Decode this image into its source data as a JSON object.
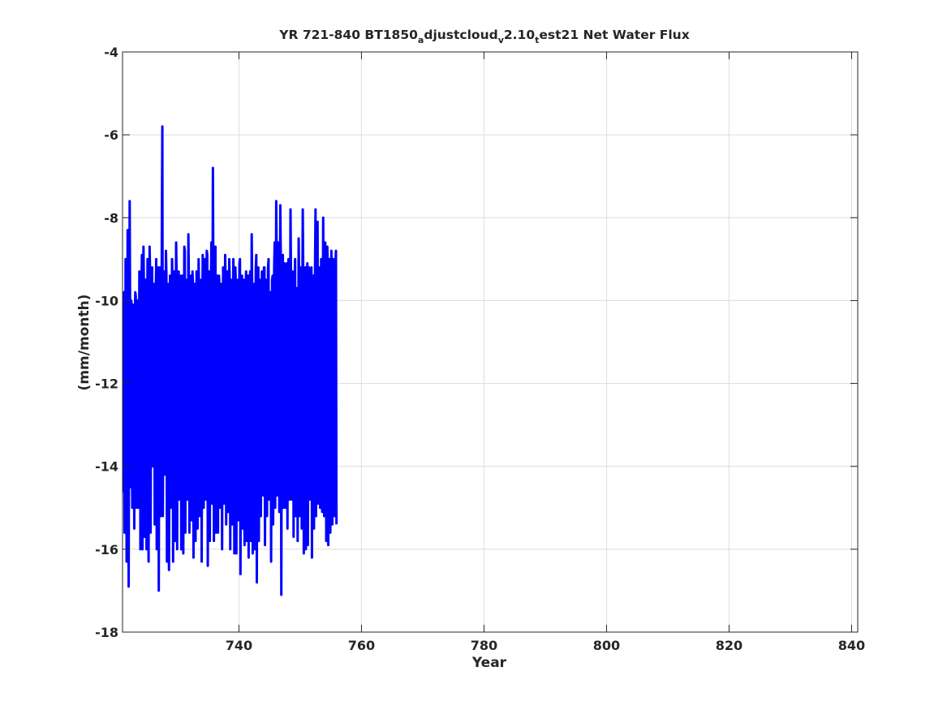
{
  "chart_data": {
    "type": "line",
    "title": {
      "prefix": "YR 721-840 BT1850",
      "sub1": "a",
      "mid1": "djustcloud",
      "sub2": "v",
      "mid2": "2.10",
      "sub3": "t",
      "suffix": "est21 Net Water Flux"
    },
    "xlabel": "Year",
    "ylabel": "(mm/month)",
    "xlim": [
      721,
      841
    ],
    "ylim": [
      -18,
      -4
    ],
    "xticks": [
      740,
      760,
      780,
      800,
      820,
      840
    ],
    "yticks": [
      -4,
      -6,
      -8,
      -10,
      -12,
      -14,
      -16,
      -18
    ],
    "grid": true,
    "line_color": "#0000ff",
    "series": [
      {
        "x_start": 721.0,
        "x_step": 0.0833333,
        "values": [
          -12.6,
          -14.6,
          -9.8,
          -9.8,
          -15.6,
          -14.2,
          -9.0,
          -9.2,
          -16.3,
          -11.8,
          -8.3,
          -8.3,
          -16.9,
          -11.6,
          -7.6,
          -10.8,
          -14.5,
          -10.0,
          -10.1,
          -15.0,
          -11.5,
          -10.4,
          -10.1,
          -15.5,
          -10.5,
          -9.8,
          -9.9,
          -15.0,
          -12.0,
          -10.3,
          -10.0,
          -15.0,
          -12.0,
          -9.3,
          -9.6,
          -16.0,
          -12.0,
          -9.9,
          -8.9,
          -16.0,
          -11.0,
          -8.7,
          -9.8,
          -15.7,
          -12.0,
          -9.5,
          -9.5,
          -16.0,
          -11.0,
          -9.0,
          -9.0,
          -16.3,
          -11.5,
          -8.7,
          -9.3,
          -15.6,
          -12.0,
          -9.4,
          -9.2,
          -14.0,
          -12.0,
          -9.6,
          -9.6,
          -15.4,
          -12.5,
          -9.8,
          -9.0,
          -16.0,
          -12.5,
          -9.5,
          -9.2,
          -17.0,
          -11.0,
          -9.2,
          -9.3,
          -15.2,
          -12.0,
          -8.4,
          -5.8,
          -15.2,
          -12.0,
          -9.4,
          -9.3,
          -14.2,
          -11.5,
          -8.8,
          -9.4,
          -16.3,
          -11.5,
          -9.6,
          -9.6,
          -16.5,
          -11.8,
          -9.4,
          -9.4,
          -15.0,
          -11.5,
          -9.0,
          -9.8,
          -16.3,
          -11.0,
          -9.3,
          -9.4,
          -15.8,
          -10.8,
          -8.6,
          -9.5,
          -16.0,
          -11.0,
          -9.4,
          -9.3,
          -14.8,
          -11.3,
          -9.9,
          -9.4,
          -16.0,
          -12.0,
          -9.8,
          -9.4,
          -16.1,
          -11.5,
          -8.7,
          -8.8,
          -15.6,
          -11.8,
          -9.8,
          -9.5,
          -14.8,
          -11.6,
          -8.4,
          -9.6,
          -15.6,
          -11.5,
          -9.5,
          -9.4,
          -15.3,
          -11.5,
          -9.3,
          -9.6,
          -16.2,
          -12.0,
          -10.2,
          -9.6,
          -15.8,
          -11.6,
          -9.3,
          -9.5,
          -15.5,
          -11.8,
          -9.0,
          -9.9,
          -15.2,
          -12.0,
          -10.1,
          -9.5,
          -16.3,
          -11.8,
          -8.9,
          -9.2,
          -15.0,
          -11.4,
          -9.0,
          -9.8,
          -14.8,
          -10.5,
          -8.8,
          -8.9,
          -16.4,
          -11.8,
          -9.3,
          -9.8,
          -15.8,
          -11.4,
          -9.6,
          -8.6,
          -14.9,
          -11.8,
          -6.8,
          -9.7,
          -15.8,
          -11.8,
          -9.0,
          -8.7,
          -15.6,
          -12.0,
          -9.4,
          -9.5,
          -15.6,
          -11.0,
          -9.4,
          -9.7,
          -15.0,
          -11.6,
          -9.6,
          -9.6,
          -16.0,
          -11.8,
          -9.2,
          -9.7,
          -14.9,
          -12.0,
          -8.9,
          -9.6,
          -15.4,
          -11.5,
          -9.3,
          -9.6,
          -15.1,
          -12.0,
          -9.0,
          -9.5,
          -16.0,
          -11.6,
          -9.6,
          -9.5,
          -15.4,
          -12.0,
          -9.0,
          -9.5,
          -16.1,
          -12.0,
          -9.2,
          -9.7,
          -16.1,
          -11.0,
          -9.7,
          -9.5,
          -15.3,
          -12.0,
          -9.1,
          -9.0,
          -16.6,
          -11.6,
          -9.5,
          -9.4,
          -15.5,
          -11.4,
          -9.8,
          -9.5,
          -15.9,
          -11.3,
          -9.8,
          -9.3,
          -15.8,
          -12.1,
          -9.9,
          -9.4,
          -16.2,
          -11.6,
          -9.6,
          -9.3,
          -15.8,
          -12.0,
          -8.4,
          -9.8,
          -16.1,
          -12.5,
          -9.6,
          -9.6,
          -16.0,
          -11.8,
          -9.2,
          -8.9,
          -16.8,
          -12.0,
          -9.4,
          -9.2,
          -15.8,
          -11.5,
          -9.5,
          -10.0,
          -15.2,
          -11.8,
          -9.3,
          -9.6,
          -14.7,
          -11.6,
          -9.2,
          -9.2,
          -15.9,
          -11.6,
          -9.5,
          -9.5,
          -15.2,
          -12.0,
          -9.2,
          -9.0,
          -14.8,
          -11.0,
          -9.8,
          -9.8,
          -16.3,
          -11.4,
          -9.5,
          -9.4,
          -15.4,
          -12.0,
          -9.2,
          -8.6,
          -15.0,
          -12.0,
          -7.6,
          -9.2,
          -14.7,
          -11.0,
          -8.6,
          -9.8,
          -15.1,
          -11.4,
          -7.7,
          -9.0,
          -17.1,
          -11.2,
          -9.4,
          -8.9,
          -15.0,
          -12.0,
          -9.1,
          -9.6,
          -15.0,
          -11.6,
          -9.6,
          -9.1,
          -15.5,
          -11.8,
          -9.0,
          -9.6,
          -14.8,
          -11.6,
          -7.8,
          -9.5,
          -14.8,
          -11.4,
          -9.3,
          -9.4,
          -15.7,
          -11.8,
          -9.6,
          -9.0,
          -15.2,
          -11.4,
          -9.7,
          -10.0,
          -15.8,
          -11.6,
          -8.5,
          -9.6,
          -15.2,
          -11.6,
          -9.4,
          -9.2,
          -15.5,
          -10.6,
          -7.8,
          -9.4,
          -16.1,
          -11.8,
          -9.3,
          -9.2,
          -16.0,
          -11.4,
          -9.6,
          -9.1,
          -15.9,
          -12.0,
          -9.2,
          -9.8,
          -14.8,
          -11.4,
          -9.3,
          -9.2,
          -16.2,
          -11.8,
          -9.5,
          -9.4,
          -15.5,
          -11.8,
          -9.3,
          -7.8,
          -15.2,
          -11.8,
          -9.3,
          -8.1,
          -14.9,
          -11.7,
          -9.4,
          -9.2,
          -15.0,
          -11.8,
          -9.0,
          -9.7,
          -15.1,
          -11.6,
          -8.0,
          -9.8,
          -15.2,
          -11.8,
          -8.6,
          -9.6,
          -15.8,
          -12.0,
          -8.7,
          -9.1,
          -15.9,
          -12.0,
          -9.0,
          -9.6,
          -15.6,
          -11.8,
          -8.8,
          -9.3,
          -15.4,
          -11.8,
          -9.0,
          -10.0,
          -15.2,
          -11.8,
          -9.2,
          -8.8,
          -15.4
        ]
      }
    ]
  }
}
